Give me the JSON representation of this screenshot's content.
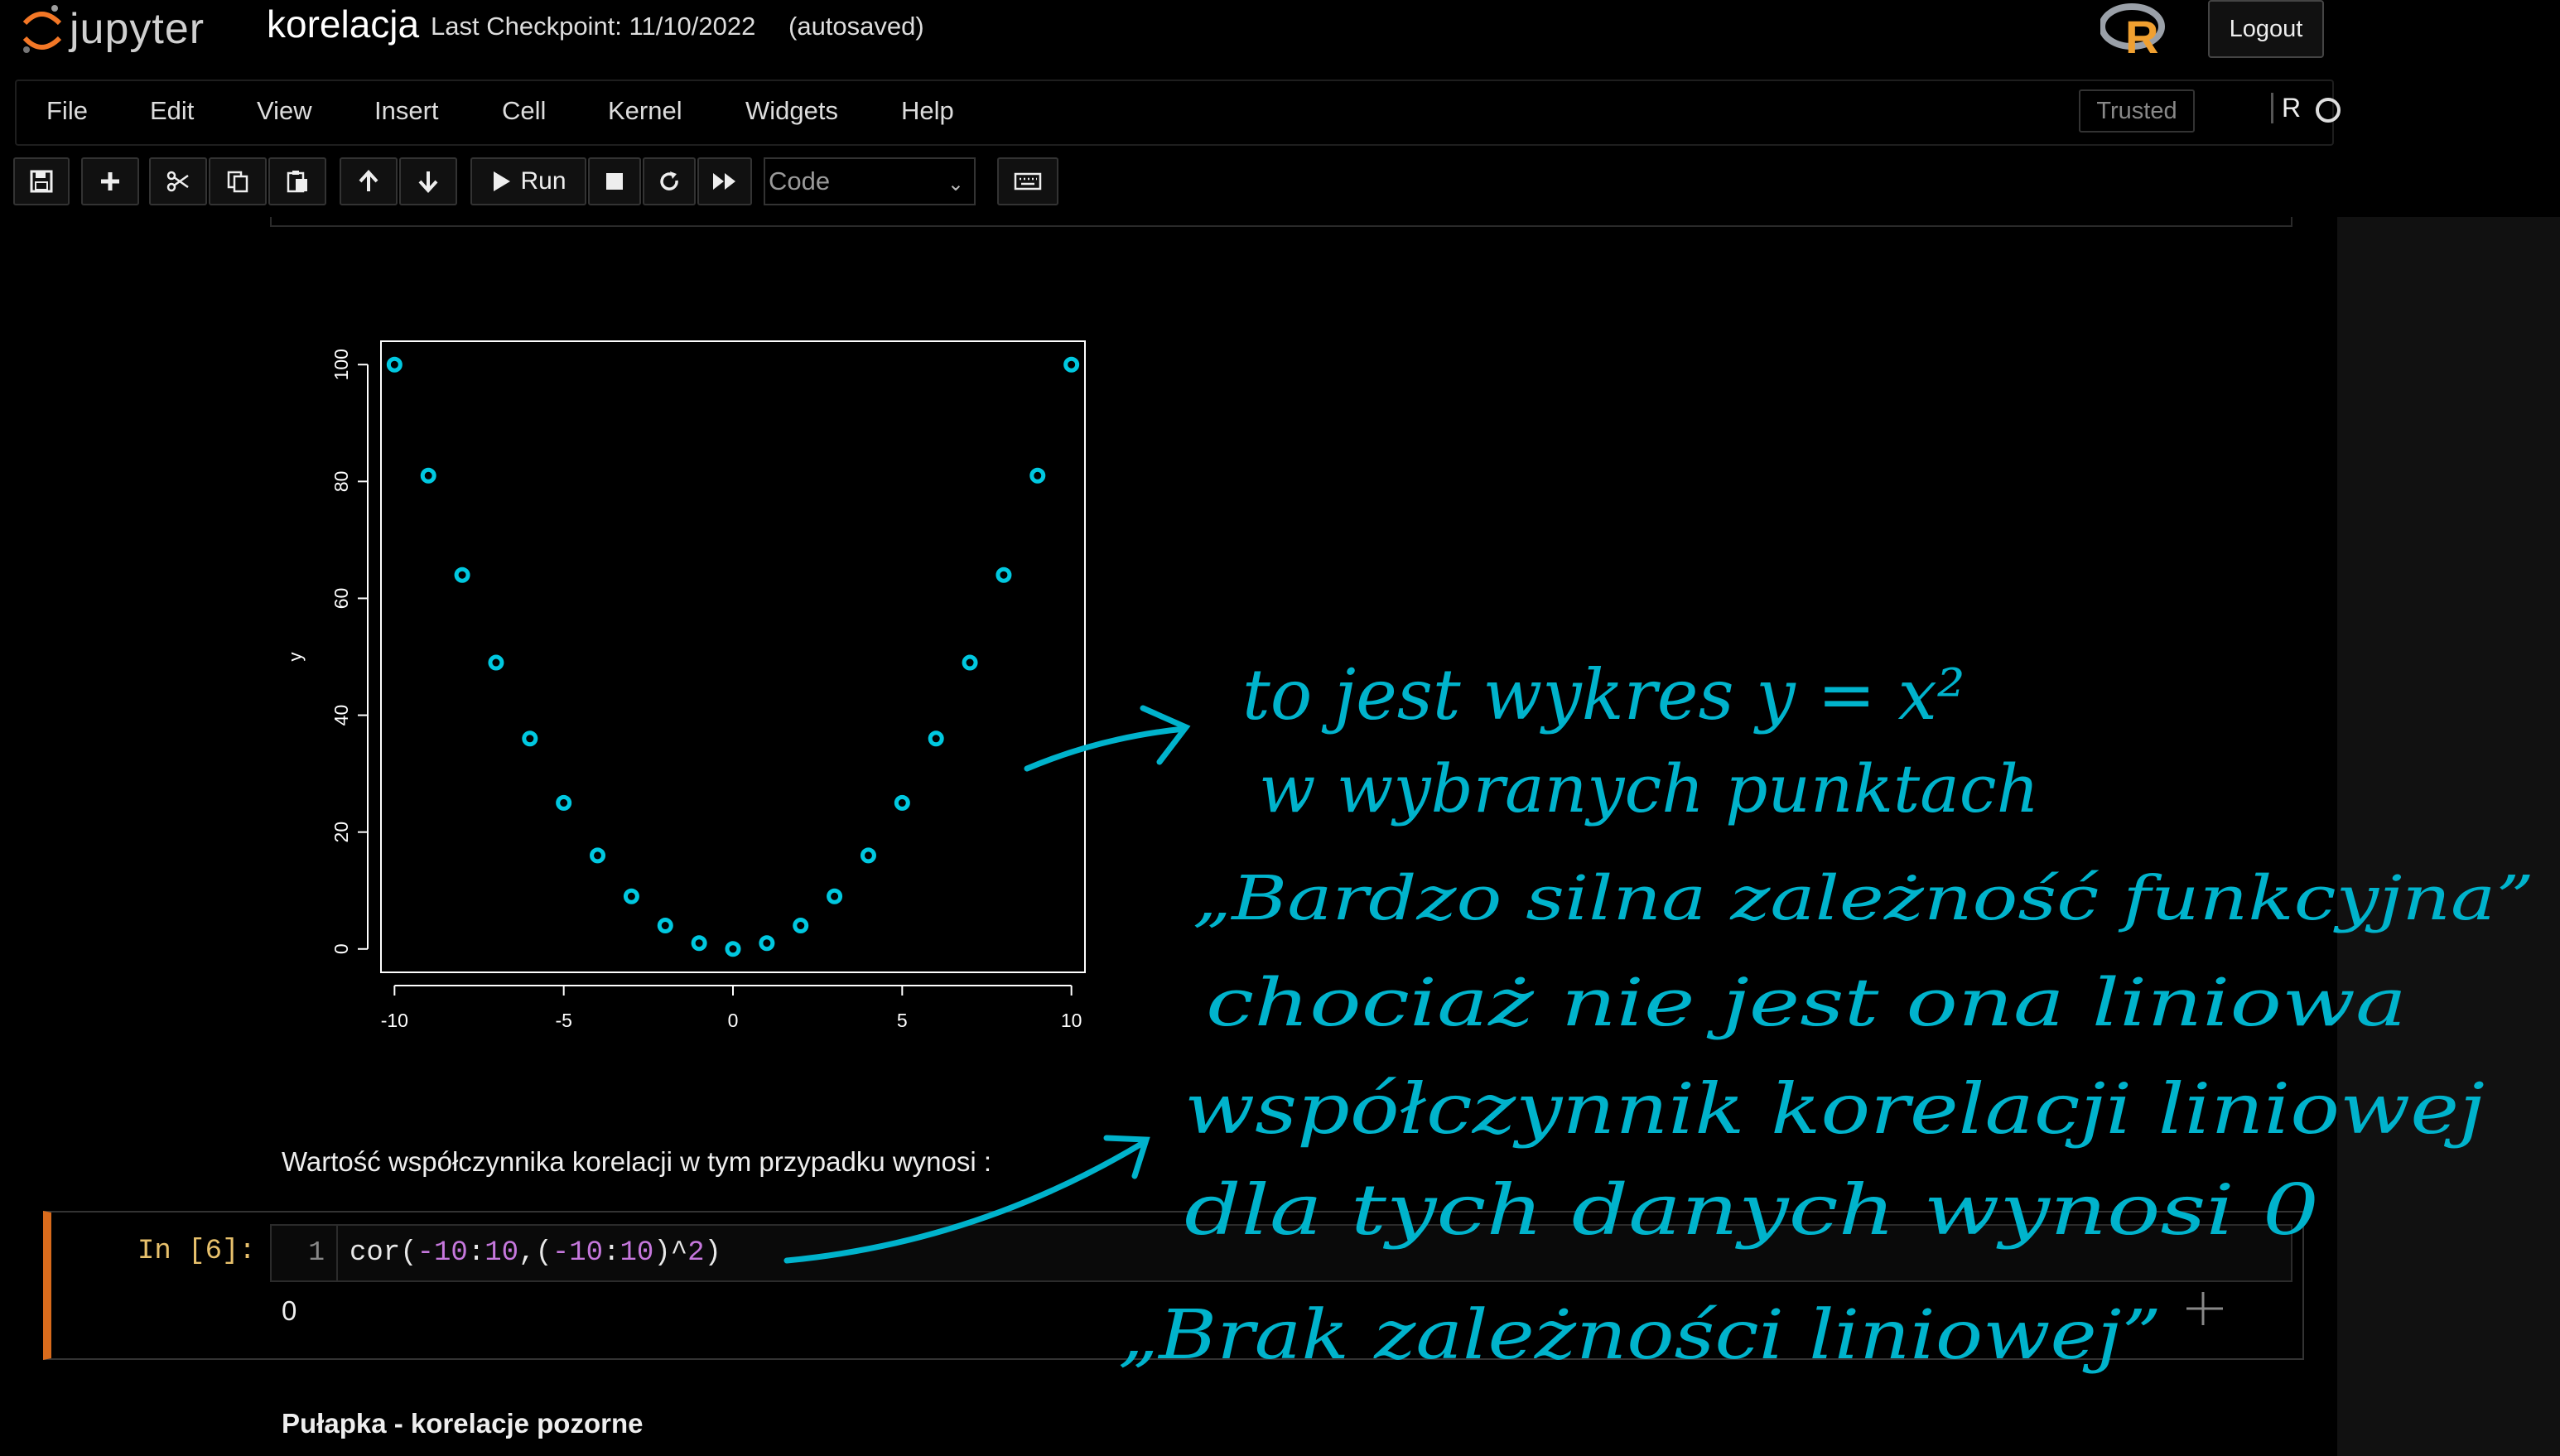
{
  "header": {
    "logo_text": "jupyter",
    "notebook_name": "korelacja",
    "checkpoint": "Last Checkpoint: 11/10/2022",
    "autosave_status": "(autosaved)",
    "logout_label": "Logout"
  },
  "menu": {
    "items": [
      "File",
      "Edit",
      "View",
      "Insert",
      "Cell",
      "Kernel",
      "Widgets",
      "Help"
    ],
    "trusted_label": "Trusted",
    "kernel_name": "R"
  },
  "toolbar": {
    "icons": [
      "save-icon",
      "plus-icon",
      "scissors-icon",
      "copy-icon",
      "paste-icon",
      "arrow-up-icon",
      "arrow-down-icon",
      "play-icon",
      "stop-icon",
      "restart-icon",
      "fast-forward-icon",
      "keyboard-icon"
    ],
    "run_label": "Run",
    "cell_type": "Code"
  },
  "chart_data": {
    "type": "scatter",
    "x": [
      -10,
      -9,
      -8,
      -7,
      -6,
      -5,
      -4,
      -3,
      -2,
      -1,
      0,
      1,
      2,
      3,
      4,
      5,
      6,
      7,
      8,
      9,
      10
    ],
    "y": [
      100,
      81,
      64,
      49,
      36,
      25,
      16,
      9,
      4,
      1,
      0,
      1,
      4,
      9,
      16,
      25,
      36,
      49,
      64,
      81,
      100
    ],
    "xlabel": "",
    "ylabel": "y",
    "xlim": [
      -10.4,
      10.4
    ],
    "ylim": [
      -4,
      104
    ],
    "xticks": [
      -10,
      -5,
      0,
      5,
      10
    ],
    "yticks": [
      0,
      20,
      40,
      60,
      80,
      100
    ],
    "marker_color": "#00c8e0",
    "grid": false
  },
  "markdown": {
    "text": "Wartość współczynnika korelacji w tym przypadku wynosi :",
    "next_heading": "Pułapka - korelacje pozorne"
  },
  "code_cell": {
    "prompt": "In [6]:",
    "line_number": "1",
    "code_parts": [
      "cor(",
      "-10",
      ":",
      "10",
      ",(",
      "-10",
      ":",
      "10",
      ")^",
      "2",
      ")"
    ],
    "output": "0"
  },
  "handwriting": {
    "lines": [
      "to jest wykres  y = x²",
      "w wybranych punktach",
      "„Bardzo silna zależność funkcyjna”",
      "chociaż nie jest ona liniowa",
      "współczynnik korelacji liniowej",
      "dla tych danych wynosi 0",
      "„Brak zależności liniowej”"
    ],
    "ink_color": "#00b3cc"
  }
}
